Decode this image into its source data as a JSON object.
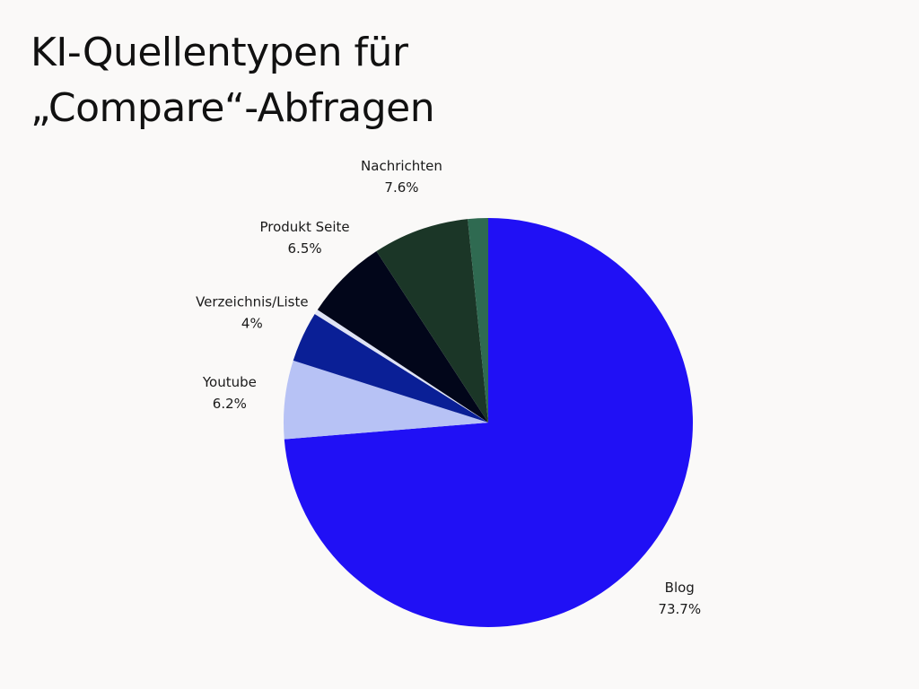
{
  "title_lines": [
    "KI-Quellentypen für",
    "„Compare“-Abfragen"
  ],
  "chart_data": {
    "type": "pie",
    "title": "KI-Quellentypen für „Compare“-Abfragen",
    "start": "12 o'clock",
    "direction": "clockwise",
    "slices": [
      {
        "label": "Blog",
        "value": 73.7,
        "value_label": "73.7%",
        "color": "#2010f5",
        "show_label": true
      },
      {
        "label": "Youtube",
        "value": 6.2,
        "value_label": "6.2%",
        "color": "#b7c2f5",
        "show_label": true
      },
      {
        "label": "Verzeichnis/Liste",
        "value": 4.0,
        "value_label": "4%",
        "color": "#0a1f96",
        "show_label": true
      },
      {
        "label": "",
        "value": 0.4,
        "value_label": "",
        "color": "#dfe3f5",
        "show_label": false
      },
      {
        "label": "Produkt Seite",
        "value": 6.5,
        "value_label": "6.5%",
        "color": "#02061a",
        "show_label": true
      },
      {
        "label": "Nachrichten",
        "value": 7.6,
        "value_label": "7.6%",
        "color": "#1b3627",
        "show_label": true
      },
      {
        "label": "",
        "value": 1.6,
        "value_label": "",
        "color": "#2f6a51",
        "show_label": false
      }
    ]
  }
}
